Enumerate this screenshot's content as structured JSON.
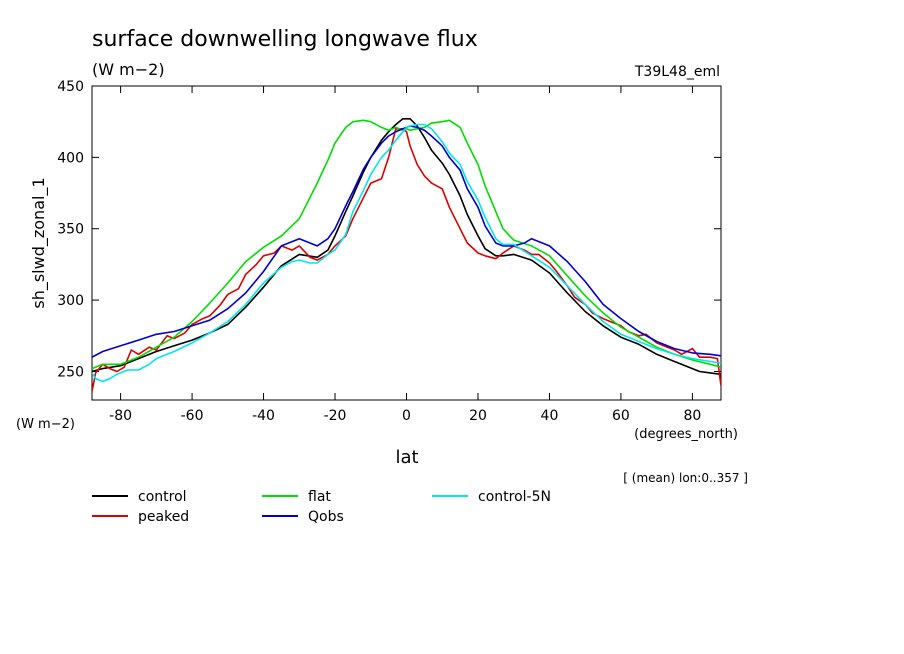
{
  "header": {
    "title": "surface downwelling longwave flux",
    "units": "(W m−2)",
    "run_label": "T39L48_eml"
  },
  "footer": {
    "mean_note": "[ (mean) lon:0..357 ]"
  },
  "chart_data": {
    "type": "line",
    "title": "surface downwelling longwave flux",
    "subtitle": "(W m−2)",
    "xlabel": "lat",
    "x_units": "(degrees_north)",
    "ylabel": "sh_slwd_zonal_1",
    "y_units": "(W m−2)",
    "xlim": [
      -88,
      88
    ],
    "ylim": [
      230,
      450
    ],
    "xticks": [
      -80,
      -60,
      -40,
      -20,
      0,
      20,
      40,
      60,
      80
    ],
    "yticks": [
      250,
      300,
      350,
      400,
      450
    ],
    "grid": false,
    "legend_position": "bottom",
    "series": [
      {
        "name": "control",
        "color": "#000000",
        "x": [
          -88,
          -85,
          -80,
          -75,
          -70,
          -65,
          -60,
          -55,
          -50,
          -45,
          -40,
          -35,
          -30,
          -25,
          -22,
          -20,
          -17,
          -15,
          -12,
          -10,
          -7,
          -5,
          -3,
          -1,
          0,
          1,
          3,
          5,
          7,
          10,
          12,
          15,
          17,
          20,
          22,
          25,
          27,
          30,
          35,
          40,
          45,
          50,
          55,
          60,
          65,
          70,
          75,
          80,
          82,
          85,
          88
        ],
        "y": [
          250,
          252,
          254,
          259,
          264,
          268,
          272,
          277,
          283,
          295,
          309,
          324,
          332,
          330,
          335,
          345,
          362,
          373,
          390,
          400,
          412,
          418,
          423,
          427,
          427,
          427,
          422,
          414,
          405,
          396,
          388,
          373,
          360,
          345,
          336,
          331,
          331,
          332,
          328,
          319,
          305,
          292,
          282,
          274,
          269,
          262,
          257,
          252,
          250,
          249,
          248
        ]
      },
      {
        "name": "peaked",
        "color": "#dd0000",
        "x": [
          -88,
          -87,
          -85,
          -83,
          -81,
          -79,
          -77,
          -75,
          -72,
          -70,
          -67,
          -65,
          -62,
          -60,
          -57,
          -55,
          -52,
          -50,
          -47,
          -45,
          -42,
          -40,
          -37,
          -35,
          -32,
          -30,
          -27,
          -25,
          -22,
          -20,
          -17,
          -15,
          -12,
          -10,
          -7,
          -5,
          -3,
          -1,
          0,
          1,
          3,
          5,
          7,
          10,
          12,
          15,
          17,
          20,
          22,
          25,
          27,
          30,
          33,
          35,
          37,
          40,
          42,
          45,
          47,
          50,
          52,
          55,
          57,
          60,
          62,
          65,
          67,
          70,
          72,
          75,
          77,
          80,
          82,
          85,
          87,
          88
        ],
        "y": [
          236,
          249,
          255,
          252,
          250,
          253,
          265,
          262,
          267,
          265,
          275,
          273,
          277,
          283,
          287,
          289,
          297,
          304,
          308,
          318,
          325,
          331,
          333,
          338,
          335,
          338,
          330,
          328,
          332,
          338,
          345,
          357,
          372,
          382,
          385,
          400,
          420,
          420,
          418,
          408,
          395,
          387,
          382,
          378,
          365,
          350,
          340,
          333,
          331,
          329,
          333,
          338,
          335,
          332,
          332,
          326,
          320,
          310,
          302,
          297,
          291,
          287,
          285,
          282,
          278,
          275,
          276,
          270,
          268,
          265,
          262,
          266,
          260,
          260,
          259,
          240
        ]
      },
      {
        "name": "flat",
        "color": "#00dd00",
        "x": [
          -88,
          -85,
          -80,
          -75,
          -70,
          -65,
          -60,
          -55,
          -50,
          -45,
          -40,
          -35,
          -30,
          -25,
          -22,
          -20,
          -17,
          -15,
          -12,
          -10,
          -7,
          -5,
          -3,
          -1,
          0,
          1,
          3,
          5,
          7,
          10,
          12,
          15,
          17,
          20,
          22,
          25,
          27,
          30,
          35,
          40,
          45,
          50,
          55,
          60,
          65,
          70,
          75,
          80,
          85,
          88
        ],
        "y": [
          252,
          255,
          255,
          260,
          267,
          274,
          285,
          298,
          312,
          327,
          337,
          345,
          357,
          382,
          398,
          410,
          421,
          425,
          426,
          425,
          421,
          419,
          421,
          419,
          420,
          419,
          420,
          421,
          424,
          425,
          426,
          421,
          410,
          395,
          380,
          362,
          350,
          342,
          338,
          331,
          317,
          303,
          291,
          281,
          274,
          267,
          262,
          258,
          255,
          253
        ]
      },
      {
        "name": "Qobs",
        "color": "#0000cc",
        "x": [
          -88,
          -85,
          -80,
          -75,
          -70,
          -65,
          -60,
          -55,
          -50,
          -45,
          -40,
          -35,
          -32,
          -30,
          -27,
          -25,
          -22,
          -20,
          -17,
          -15,
          -12,
          -10,
          -7,
          -5,
          -3,
          -1,
          0,
          1,
          3,
          5,
          7,
          10,
          12,
          15,
          17,
          20,
          22,
          25,
          27,
          30,
          33,
          35,
          40,
          45,
          50,
          55,
          60,
          65,
          70,
          75,
          80,
          85,
          88
        ],
        "y": [
          260,
          264,
          268,
          272,
          276,
          278,
          282,
          286,
          294,
          305,
          320,
          338,
          341,
          343,
          340,
          338,
          343,
          350,
          366,
          376,
          392,
          400,
          410,
          415,
          418,
          420,
          421,
          422,
          421,
          419,
          415,
          408,
          400,
          391,
          378,
          365,
          352,
          340,
          338,
          338,
          340,
          343,
          338,
          327,
          313,
          297,
          287,
          278,
          271,
          266,
          263,
          262,
          261
        ]
      },
      {
        "name": "control-5N",
        "color": "#00e5ee",
        "x": [
          -88,
          -87,
          -85,
          -83,
          -81,
          -78,
          -75,
          -72,
          -70,
          -65,
          -60,
          -55,
          -50,
          -45,
          -40,
          -35,
          -32,
          -30,
          -27,
          -25,
          -22,
          -20,
          -17,
          -15,
          -12,
          -10,
          -7,
          -5,
          -3,
          -1,
          0,
          1,
          3,
          5,
          7,
          10,
          12,
          15,
          17,
          20,
          22,
          25,
          27,
          30,
          35,
          40,
          45,
          50,
          55,
          60,
          65,
          70,
          75,
          80,
          85,
          88
        ],
        "y": [
          249,
          245,
          243,
          245,
          248,
          251,
          251,
          255,
          259,
          264,
          270,
          277,
          285,
          297,
          312,
          323,
          327,
          328,
          326,
          326,
          332,
          335,
          346,
          362,
          377,
          388,
          400,
          405,
          412,
          418,
          421,
          422,
          423,
          423,
          420,
          411,
          403,
          395,
          383,
          370,
          358,
          343,
          339,
          339,
          331,
          323,
          310,
          297,
          285,
          276,
          271,
          266,
          262,
          259,
          257,
          256
        ]
      }
    ]
  }
}
